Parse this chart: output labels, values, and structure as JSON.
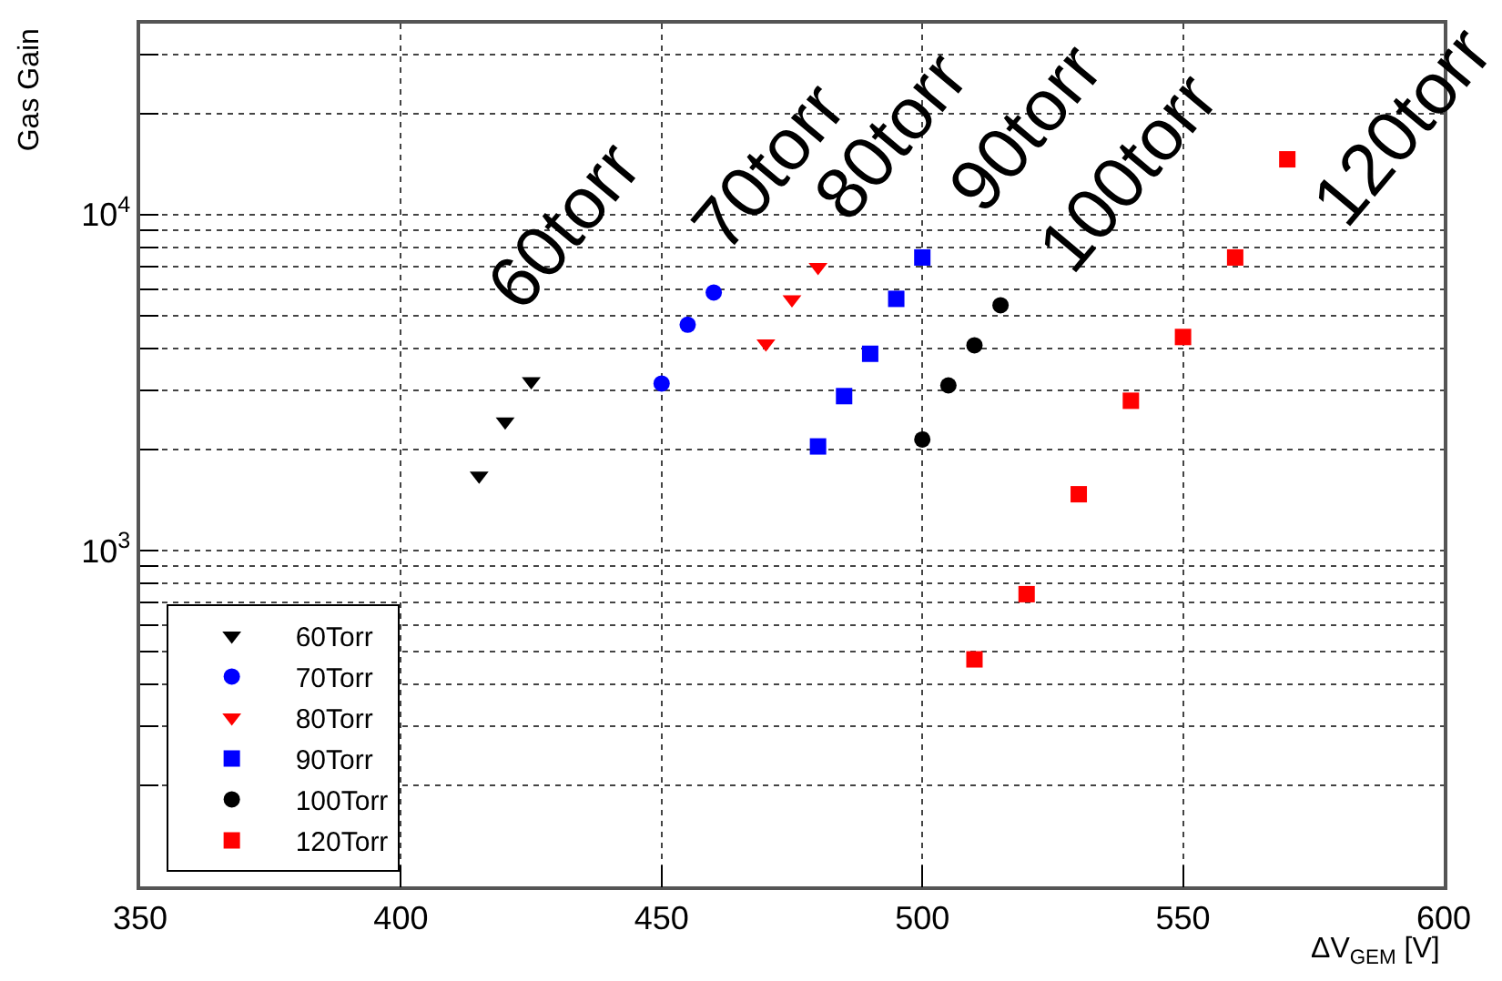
{
  "chart_data": {
    "type": "scatter",
    "xlabel": "ΔV$_{GEM}$ [V]",
    "ylabel": "Gas Gain",
    "xlim": [
      350,
      600
    ],
    "xticks": [
      350,
      400,
      450,
      500,
      550,
      600
    ],
    "ylim": [
      100,
      37000
    ],
    "log": true,
    "yticks": [
      {
        "value": 200,
        "label": null
      },
      {
        "value": 300,
        "label": null
      },
      {
        "value": 400,
        "label": null
      },
      {
        "value": 500,
        "label": null
      },
      {
        "value": 600,
        "label": null
      },
      {
        "value": 700,
        "label": null
      },
      {
        "value": 800,
        "label": null
      },
      {
        "value": 900,
        "label": null
      },
      {
        "value": 1000,
        "label": "10$^{3}$"
      },
      {
        "value": 2000,
        "label": null
      },
      {
        "value": 3000,
        "label": null
      },
      {
        "value": 4000,
        "label": null
      },
      {
        "value": 5000,
        "label": null
      },
      {
        "value": 6000,
        "label": null
      },
      {
        "value": 7000,
        "label": null
      },
      {
        "value": 8000,
        "label": null
      },
      {
        "value": 9000,
        "label": null
      },
      {
        "value": 10000,
        "label": "10$^{4}$"
      },
      {
        "value": 20000,
        "label": null
      },
      {
        "value": 30000,
        "label": null
      }
    ],
    "grid": true,
    "legend": "bottom left",
    "series": [
      {
        "name": "60Torr",
        "color": "#000000",
        "marker": "triangle",
        "x": [
          415,
          420,
          425
        ],
        "values": [
          1670,
          2420,
          3190
        ]
      },
      {
        "name": "70Torr",
        "color": "#0000ff",
        "marker": "circle",
        "x": [
          450,
          455,
          460
        ],
        "values": [
          3140,
          4700,
          5860
        ]
      },
      {
        "name": "80Torr",
        "color": "#ff0000",
        "marker": "triangle",
        "x": [
          470,
          475,
          480
        ],
        "values": [
          4130,
          5590,
          6970
        ]
      },
      {
        "name": "90Torr",
        "color": "#0000ff",
        "marker": "square",
        "x": [
          480,
          485,
          490,
          495,
          500
        ],
        "values": [
          2040,
          2880,
          3850,
          5610,
          7450
        ]
      },
      {
        "name": "100Torr",
        "color": "#000000",
        "marker": "circle",
        "x": [
          500,
          505,
          510,
          515
        ],
        "values": [
          2140,
          3100,
          4080,
          5370
        ]
      },
      {
        "name": "120Torr",
        "color": "#ff0000",
        "marker": "square",
        "x": [
          510,
          520,
          530,
          540,
          550,
          560,
          570
        ],
        "values": [
          474,
          741,
          1470,
          2790,
          4320,
          7450,
          14600
        ]
      }
    ],
    "annotations": [
      "60torr",
      "70torr",
      "80torr",
      "90torr",
      "100torr",
      "120torr"
    ]
  }
}
